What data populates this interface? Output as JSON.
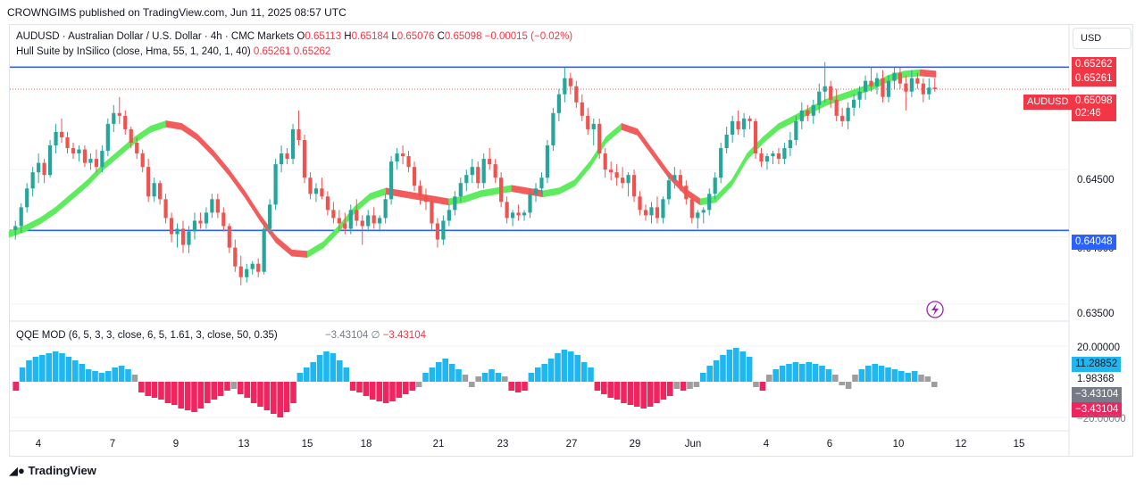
{
  "header": {
    "publisher_line": "CROWNGIMS published on TradingView.com, Jun 11, 2025 08:57 UTC"
  },
  "legend": {
    "symbol_line": "AUDUSD · Australian Dollar / U.S. Dollar · 4h · CMC Markets",
    "o_label": "O",
    "o_value": "0.65113",
    "h_label": "H",
    "h_value": "0.65184",
    "l_label": "L",
    "l_value": "0.65076",
    "c_label": "C",
    "c_value": "0.65098",
    "change": "−0.00015 (−0.02%)",
    "hull_label": "Hull Suite by InSilico (close, Hma, 55, 1, 240, 1, 40)",
    "hull_v1": "0.65261",
    "hull_v2": "0.65262",
    "qqe_label": "QQE MOD (6, 5, 3, 3, close, 6, 5, 1.61, 3, close, 50, 0.35)",
    "qqe_v1": "−3.43104",
    "qqe_symbol": "∅",
    "qqe_v2": "−3.43104"
  },
  "currency_button": "USD",
  "price_axis": {
    "ticks": [
      "0.64500",
      "0.64000",
      "0.63500"
    ],
    "tags": {
      "hull_hi": "0.65262",
      "hull_lo": "0.65261",
      "symbol": "AUDUSD",
      "last": "0.65098",
      "countdown": "02:46",
      "support": "0.64048"
    }
  },
  "qqe_axis": {
    "ticks": [
      "20.00000",
      "−20.00000"
    ],
    "tags": [
      "11.28852",
      "1.98368",
      "−3.43104",
      "−3.43104"
    ]
  },
  "time_axis": [
    "4",
    "7",
    "9",
    "13",
    "15",
    "18",
    "21",
    "23",
    "27",
    "29",
    "Jun",
    "4",
    "6",
    "10",
    "12",
    "15"
  ],
  "brand": "TradingView",
  "colors": {
    "up": "#26a69a",
    "down": "#ef5350",
    "hull_up": "#5dec5d",
    "hull_down": "#f25c5c",
    "hline": "#2962ff",
    "qqe_blue": "#20b7f0",
    "qqe_red": "#f0245f",
    "qqe_gray": "#9e9e9e"
  },
  "chart_data": {
    "type": "candlestick",
    "symbol": "AUDUSD",
    "timeframe": "4h",
    "ylim": [
      0.634,
      0.6535
    ],
    "horizontal_lines": [
      0.65262,
      0.64048
    ],
    "last_price": 0.65098,
    "candles": [
      [
        0.6405,
        0.6412,
        0.6398,
        0.6408
      ],
      [
        0.6408,
        0.6425,
        0.6403,
        0.6422
      ],
      [
        0.6422,
        0.644,
        0.6418,
        0.6436
      ],
      [
        0.6436,
        0.6452,
        0.643,
        0.6448
      ],
      [
        0.6448,
        0.6462,
        0.644,
        0.6455
      ],
      [
        0.6455,
        0.6458,
        0.644,
        0.6446
      ],
      [
        0.6446,
        0.6472,
        0.6444,
        0.6468
      ],
      [
        0.6468,
        0.6484,
        0.6462,
        0.6478
      ],
      [
        0.6478,
        0.6488,
        0.647,
        0.6474
      ],
      [
        0.6474,
        0.6478,
        0.6462,
        0.6466
      ],
      [
        0.6466,
        0.647,
        0.6458,
        0.6462
      ],
      [
        0.6462,
        0.6468,
        0.6456,
        0.6465
      ],
      [
        0.6465,
        0.6468,
        0.6452,
        0.6455
      ],
      [
        0.6455,
        0.6462,
        0.645,
        0.6458
      ],
      [
        0.6458,
        0.6465,
        0.6448,
        0.6452
      ],
      [
        0.6452,
        0.6468,
        0.6448,
        0.6464
      ],
      [
        0.6464,
        0.6488,
        0.646,
        0.6484
      ],
      [
        0.6484,
        0.6498,
        0.6478,
        0.6492
      ],
      [
        0.6492,
        0.6504,
        0.6484,
        0.649
      ],
      [
        0.649,
        0.6494,
        0.6476,
        0.648
      ],
      [
        0.648,
        0.6482,
        0.6466,
        0.647
      ],
      [
        0.647,
        0.6474,
        0.6458,
        0.6462
      ],
      [
        0.6462,
        0.6465,
        0.6448,
        0.6452
      ],
      [
        0.6452,
        0.6458,
        0.6426,
        0.643
      ],
      [
        0.643,
        0.6444,
        0.6426,
        0.644
      ],
      [
        0.644,
        0.6442,
        0.6424,
        0.6428
      ],
      [
        0.6428,
        0.6432,
        0.641,
        0.6414
      ],
      [
        0.6414,
        0.6418,
        0.6396,
        0.6402
      ],
      [
        0.6402,
        0.641,
        0.6392,
        0.6406
      ],
      [
        0.6406,
        0.6412,
        0.6388,
        0.6394
      ],
      [
        0.6394,
        0.6408,
        0.6388,
        0.6404
      ],
      [
        0.6404,
        0.6418,
        0.6398,
        0.6412
      ],
      [
        0.6412,
        0.6418,
        0.6406,
        0.641
      ],
      [
        0.641,
        0.6422,
        0.6406,
        0.6418
      ],
      [
        0.6418,
        0.6432,
        0.6414,
        0.6428
      ],
      [
        0.6428,
        0.6432,
        0.6414,
        0.6418
      ],
      [
        0.6418,
        0.6422,
        0.6404,
        0.6408
      ],
      [
        0.6408,
        0.641,
        0.6388,
        0.6392
      ],
      [
        0.6392,
        0.6398,
        0.6374,
        0.6378
      ],
      [
        0.6378,
        0.6386,
        0.6364,
        0.637
      ],
      [
        0.637,
        0.638,
        0.6366,
        0.6376
      ],
      [
        0.6376,
        0.6382,
        0.6372,
        0.638
      ],
      [
        0.638,
        0.6384,
        0.637,
        0.6374
      ],
      [
        0.6374,
        0.641,
        0.6372,
        0.6406
      ],
      [
        0.6406,
        0.6428,
        0.6402,
        0.6424
      ],
      [
        0.6424,
        0.6458,
        0.642,
        0.6454
      ],
      [
        0.6454,
        0.6468,
        0.6448,
        0.6462
      ],
      [
        0.6462,
        0.6466,
        0.6454,
        0.6458
      ],
      [
        0.6458,
        0.6484,
        0.6454,
        0.648
      ],
      [
        0.648,
        0.6494,
        0.6468,
        0.6472
      ],
      [
        0.6472,
        0.6476,
        0.644,
        0.6444
      ],
      [
        0.6444,
        0.6448,
        0.6428,
        0.6432
      ],
      [
        0.6432,
        0.644,
        0.6426,
        0.6436
      ],
      [
        0.6436,
        0.6444,
        0.6428,
        0.643
      ],
      [
        0.643,
        0.6434,
        0.6416,
        0.642
      ],
      [
        0.642,
        0.6426,
        0.641,
        0.6414
      ],
      [
        0.6414,
        0.642,
        0.6404,
        0.641
      ],
      [
        0.641,
        0.6418,
        0.6402,
        0.6406
      ],
      [
        0.6406,
        0.6424,
        0.6402,
        0.642
      ],
      [
        0.642,
        0.6428,
        0.6408,
        0.6412
      ],
      [
        0.6412,
        0.6416,
        0.6394,
        0.6408
      ],
      [
        0.6408,
        0.642,
        0.6404,
        0.6416
      ],
      [
        0.6416,
        0.6422,
        0.6406,
        0.641
      ],
      [
        0.641,
        0.6416,
        0.6404,
        0.6414
      ],
      [
        0.6414,
        0.6432,
        0.641,
        0.6428
      ],
      [
        0.6428,
        0.646,
        0.6424,
        0.6456
      ],
      [
        0.6456,
        0.6466,
        0.645,
        0.6462
      ],
      [
        0.6462,
        0.6468,
        0.6454,
        0.646
      ],
      [
        0.646,
        0.6464,
        0.6448,
        0.6452
      ],
      [
        0.6452,
        0.6456,
        0.6434,
        0.6438
      ],
      [
        0.6438,
        0.6442,
        0.6424,
        0.643
      ],
      [
        0.643,
        0.6436,
        0.642,
        0.6426
      ],
      [
        0.6426,
        0.643,
        0.6404,
        0.641
      ],
      [
        0.641,
        0.6414,
        0.6392,
        0.6398
      ],
      [
        0.6398,
        0.6416,
        0.6394,
        0.6412
      ],
      [
        0.6412,
        0.6424,
        0.6408,
        0.642
      ],
      [
        0.642,
        0.6434,
        0.6416,
        0.643
      ],
      [
        0.643,
        0.6444,
        0.6426,
        0.644
      ],
      [
        0.644,
        0.645,
        0.6434,
        0.6446
      ],
      [
        0.6446,
        0.6458,
        0.644,
        0.6452
      ],
      [
        0.6452,
        0.6456,
        0.6436,
        0.644
      ],
      [
        0.644,
        0.6462,
        0.6436,
        0.6458
      ],
      [
        0.6458,
        0.6466,
        0.645,
        0.6454
      ],
      [
        0.6454,
        0.6458,
        0.644,
        0.6444
      ],
      [
        0.6444,
        0.6448,
        0.6422,
        0.6426
      ],
      [
        0.6426,
        0.643,
        0.641,
        0.6414
      ],
      [
        0.6414,
        0.642,
        0.6408,
        0.6418
      ],
      [
        0.6418,
        0.6424,
        0.6412,
        0.6416
      ],
      [
        0.6416,
        0.642,
        0.6412,
        0.6418
      ],
      [
        0.6418,
        0.6436,
        0.6414,
        0.6432
      ],
      [
        0.6432,
        0.644,
        0.6426,
        0.6436
      ],
      [
        0.6436,
        0.6448,
        0.6432,
        0.6444
      ],
      [
        0.6444,
        0.6472,
        0.644,
        0.6468
      ],
      [
        0.6468,
        0.6496,
        0.6464,
        0.6492
      ],
      [
        0.6492,
        0.651,
        0.6486,
        0.6506
      ],
      [
        0.6506,
        0.6526,
        0.65,
        0.6518
      ],
      [
        0.6518,
        0.6522,
        0.6506,
        0.6512
      ],
      [
        0.6512,
        0.6516,
        0.6496,
        0.65
      ],
      [
        0.65,
        0.6506,
        0.6486,
        0.649
      ],
      [
        0.649,
        0.6496,
        0.6476,
        0.648
      ],
      [
        0.648,
        0.6488,
        0.6468,
        0.6484
      ],
      [
        0.6484,
        0.6488,
        0.6458,
        0.6462
      ],
      [
        0.6462,
        0.6466,
        0.6444,
        0.645
      ],
      [
        0.645,
        0.6456,
        0.6442,
        0.6448
      ],
      [
        0.6448,
        0.6454,
        0.6438,
        0.6444
      ],
      [
        0.6444,
        0.6452,
        0.6436,
        0.644
      ],
      [
        0.644,
        0.6448,
        0.643,
        0.6446
      ],
      [
        0.6446,
        0.645,
        0.6426,
        0.643
      ],
      [
        0.643,
        0.6434,
        0.6416,
        0.642
      ],
      [
        0.642,
        0.6424,
        0.6412,
        0.6416
      ],
      [
        0.6416,
        0.6426,
        0.641,
        0.6422
      ],
      [
        0.6422,
        0.643,
        0.641,
        0.6414
      ],
      [
        0.6414,
        0.643,
        0.641,
        0.6428
      ],
      [
        0.6428,
        0.6446,
        0.6424,
        0.6442
      ],
      [
        0.6442,
        0.6452,
        0.6436,
        0.6446
      ],
      [
        0.6446,
        0.645,
        0.6434,
        0.6438
      ],
      [
        0.6438,
        0.6442,
        0.6424,
        0.6428
      ],
      [
        0.6428,
        0.6432,
        0.641,
        0.6414
      ],
      [
        0.6414,
        0.642,
        0.6406,
        0.6418
      ],
      [
        0.6418,
        0.6422,
        0.641,
        0.642
      ],
      [
        0.642,
        0.6436,
        0.6416,
        0.6432
      ],
      [
        0.6432,
        0.6448,
        0.6428,
        0.6444
      ],
      [
        0.6444,
        0.647,
        0.644,
        0.6466
      ],
      [
        0.6466,
        0.6482,
        0.6462,
        0.6476
      ],
      [
        0.6476,
        0.649,
        0.647,
        0.6486
      ],
      [
        0.6486,
        0.6494,
        0.6476,
        0.648
      ],
      [
        0.648,
        0.6492,
        0.6474,
        0.6488
      ],
      [
        0.6488,
        0.649,
        0.648,
        0.6486
      ],
      [
        0.6486,
        0.6488,
        0.6458,
        0.6462
      ],
      [
        0.6462,
        0.6466,
        0.6452,
        0.6456
      ],
      [
        0.6456,
        0.6462,
        0.645,
        0.646
      ],
      [
        0.646,
        0.6464,
        0.6454,
        0.6462
      ],
      [
        0.6462,
        0.6466,
        0.6454,
        0.6458
      ],
      [
        0.6458,
        0.647,
        0.6454,
        0.6466
      ],
      [
        0.6466,
        0.6478,
        0.646,
        0.6472
      ],
      [
        0.6472,
        0.649,
        0.6468,
        0.6486
      ],
      [
        0.6486,
        0.65,
        0.648,
        0.6494
      ],
      [
        0.6494,
        0.6498,
        0.6486,
        0.649
      ],
      [
        0.649,
        0.6502,
        0.6484,
        0.6498
      ],
      [
        0.6498,
        0.6514,
        0.6492,
        0.6508
      ],
      [
        0.6508,
        0.653,
        0.65,
        0.6512
      ],
      [
        0.6512,
        0.6516,
        0.6496,
        0.6502
      ],
      [
        0.6502,
        0.651,
        0.6486,
        0.649
      ],
      [
        0.649,
        0.6496,
        0.6482,
        0.6486
      ],
      [
        0.6486,
        0.65,
        0.648,
        0.6496
      ],
      [
        0.6496,
        0.6506,
        0.649,
        0.6502
      ],
      [
        0.6502,
        0.6512,
        0.6496,
        0.6508
      ],
      [
        0.6508,
        0.652,
        0.6502,
        0.6516
      ],
      [
        0.6516,
        0.6526,
        0.6508,
        0.6512
      ],
      [
        0.6512,
        0.6522,
        0.6506,
        0.6518
      ],
      [
        0.6518,
        0.6524,
        0.65,
        0.6504
      ],
      [
        0.6504,
        0.652,
        0.65,
        0.6516
      ],
      [
        0.6516,
        0.6526,
        0.651,
        0.6522
      ],
      [
        0.6522,
        0.6526,
        0.651,
        0.6514
      ],
      [
        0.6514,
        0.652,
        0.6494,
        0.6508
      ],
      [
        0.6508,
        0.6524,
        0.6504,
        0.6518
      ],
      [
        0.6518,
        0.6522,
        0.651,
        0.6514
      ],
      [
        0.6514,
        0.6518,
        0.65,
        0.6506
      ],
      [
        0.6506,
        0.6518,
        0.6502,
        0.6511
      ],
      [
        0.6511,
        0.6518,
        0.6508,
        0.65098
      ]
    ],
    "hull": {
      "legend": "Hull Suite by InSilico (close, Hma, 55, 1, 240, 1, 40)",
      "values": [
        0.6402,
        0.6406,
        0.6412,
        0.642,
        0.643,
        0.644,
        0.6452,
        0.6462,
        0.6472,
        0.648,
        0.6484,
        0.6482,
        0.6474,
        0.6462,
        0.6448,
        0.6432,
        0.6414,
        0.6398,
        0.6388,
        0.6387,
        0.6394,
        0.6406,
        0.642,
        0.643,
        0.6434,
        0.6432,
        0.643,
        0.6428,
        0.6426,
        0.6428,
        0.6432,
        0.6434,
        0.6436,
        0.6434,
        0.6432,
        0.6434,
        0.644,
        0.6454,
        0.6472,
        0.6482,
        0.6478,
        0.6462,
        0.6446,
        0.6434,
        0.6426,
        0.6428,
        0.644,
        0.646,
        0.6472,
        0.6482,
        0.6488,
        0.6494,
        0.65,
        0.6504,
        0.6508,
        0.6512,
        0.6518,
        0.6521,
        0.6522,
        0.6521
      ]
    },
    "qqe": {
      "legend": "QQE MOD (6, 5, 3, 3, close, 6, 5, 1.61, 3, close, 50, 0.35)",
      "ylim": [
        -25,
        22
      ],
      "values": [
        -5,
        8,
        12,
        14,
        15,
        16,
        17,
        16,
        14,
        12,
        10,
        7,
        6,
        5,
        6,
        8,
        9,
        7,
        4,
        -6,
        -8,
        -9,
        -10,
        -12,
        -13,
        -15,
        -16,
        -17,
        -15,
        -12,
        -10,
        -8,
        -5,
        -4,
        -7,
        -9,
        -12,
        -14,
        -16,
        -18,
        -20,
        -17,
        -12,
        5,
        8,
        11,
        15,
        17,
        16,
        12,
        8,
        -5,
        -6,
        -8,
        -10,
        -11,
        -12,
        -11,
        -9,
        -7,
        -5,
        -3,
        5,
        8,
        11,
        13,
        10,
        7,
        4,
        -3,
        3,
        5,
        7,
        5,
        3,
        -5,
        -6,
        -5,
        5,
        8,
        10,
        13,
        16,
        18,
        17,
        15,
        11,
        8,
        -5,
        -7,
        -9,
        -10,
        -12,
        -13,
        -14,
        -15,
        -14,
        -12,
        -10,
        -8,
        -4,
        -5,
        -4,
        -3,
        5,
        9,
        12,
        15,
        18,
        19,
        17,
        14,
        -3,
        -5,
        4,
        7,
        9,
        10,
        11,
        10,
        11,
        10,
        9,
        7,
        4,
        -2,
        -4,
        4,
        7,
        9,
        10,
        9,
        8,
        7,
        6,
        5,
        6,
        4,
        3,
        -3
      ],
      "last": -3.43104
    }
  }
}
